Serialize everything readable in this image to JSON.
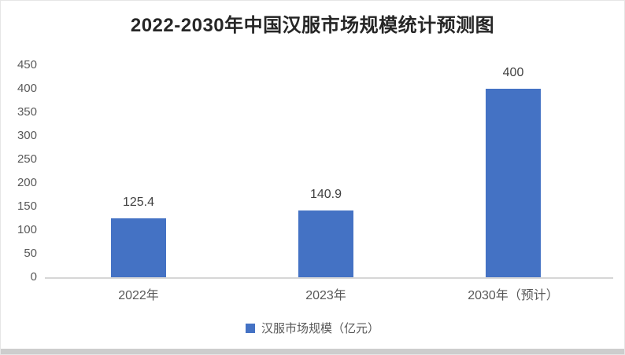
{
  "chart_data": {
    "type": "bar",
    "title": "2022-2030年中国汉服市场规模统计预测图",
    "categories": [
      "2022年",
      "2023年",
      "2030年（预计）"
    ],
    "values": [
      125.4,
      140.9,
      400
    ],
    "value_labels": [
      "125.4",
      "140.9",
      "400"
    ],
    "series": [
      {
        "name": "汉服市场规模（亿元）",
        "values": [
          125.4,
          140.9,
          400
        ]
      }
    ],
    "xlabel": "",
    "ylabel": "",
    "ylim": [
      0,
      450
    ],
    "yticks": [
      0,
      50,
      100,
      150,
      200,
      250,
      300,
      350,
      400,
      450
    ],
    "grid": false,
    "legend_position": "bottom",
    "data_labels_shown": true
  },
  "legend": {
    "label": "汉服市场规模（亿元）"
  },
  "colors": {
    "bar": "#4472C4",
    "title_text": "#262626",
    "axis_text": "#595959",
    "value_label_text": "#404040",
    "axis_line": "#d6d6d6",
    "card_border": "#e6e6e6",
    "bottom_shadow": "#cdcdcd"
  }
}
